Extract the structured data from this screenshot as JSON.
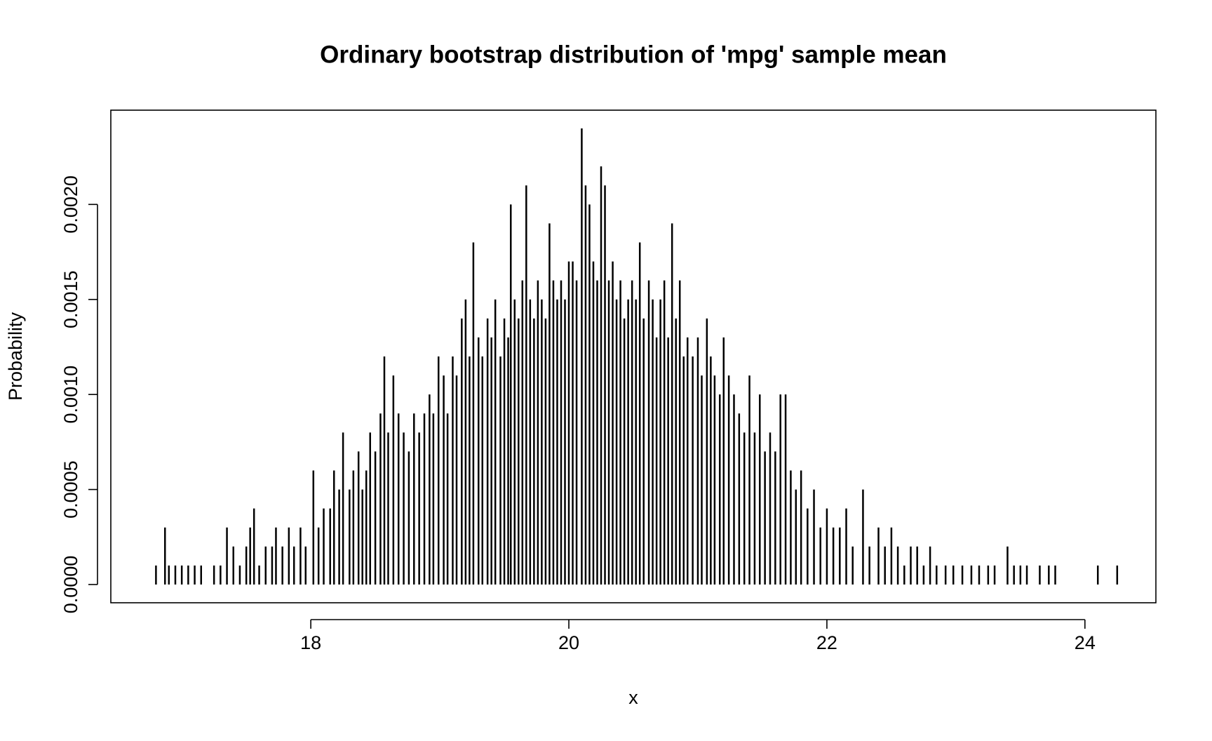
{
  "chart_data": {
    "type": "spike",
    "title": "Ordinary bootstrap distribution of 'mpg' sample mean",
    "x_label": "x",
    "y_label": "Probability",
    "color": "#000000",
    "xlim": [
      16.45,
      24.55
    ],
    "xticks": [
      18,
      20,
      22,
      24
    ],
    "ylim": [
      -9.6e-05,
      0.002496
    ],
    "yticks": [
      {
        "value": 0,
        "label": "0.0000"
      },
      {
        "value": 0.0005,
        "label": "0.0005"
      },
      {
        "value": 0.001,
        "label": "0.0010"
      },
      {
        "value": 0.0015,
        "label": "0.0015"
      },
      {
        "value": 0.002,
        "label": "0.0020"
      }
    ],
    "x": [
      16.8,
      16.87,
      16.9,
      16.95,
      17.0,
      17.05,
      17.1,
      17.15,
      17.25,
      17.3,
      17.35,
      17.4,
      17.45,
      17.5,
      17.53,
      17.56,
      17.6,
      17.65,
      17.7,
      17.73,
      17.78,
      17.83,
      17.87,
      17.92,
      17.96,
      18.02,
      18.06,
      18.1,
      18.15,
      18.18,
      18.22,
      18.25,
      18.3,
      18.33,
      18.37,
      18.4,
      18.43,
      18.46,
      18.5,
      18.54,
      18.57,
      18.6,
      18.64,
      18.68,
      18.72,
      18.76,
      18.8,
      18.84,
      18.88,
      18.92,
      18.95,
      18.99,
      19.03,
      19.06,
      19.1,
      19.13,
      19.17,
      19.2,
      19.23,
      19.26,
      19.3,
      19.33,
      19.37,
      19.4,
      19.43,
      19.47,
      19.5,
      19.53,
      19.55,
      19.58,
      19.61,
      19.64,
      19.67,
      19.7,
      19.73,
      19.76,
      19.79,
      19.82,
      19.85,
      19.88,
      19.91,
      19.94,
      19.97,
      20.0,
      20.03,
      20.06,
      20.1,
      20.13,
      20.16,
      20.19,
      20.22,
      20.25,
      20.28,
      20.31,
      20.34,
      20.37,
      20.4,
      20.43,
      20.46,
      20.49,
      20.52,
      20.55,
      20.58,
      20.62,
      20.65,
      20.68,
      20.71,
      20.74,
      20.77,
      20.8,
      20.83,
      20.86,
      20.89,
      20.92,
      20.96,
      21.0,
      21.03,
      21.07,
      21.1,
      21.13,
      21.17,
      21.2,
      21.24,
      21.28,
      21.32,
      21.36,
      21.4,
      21.44,
      21.48,
      21.52,
      21.56,
      21.6,
      21.64,
      21.68,
      21.72,
      21.76,
      21.8,
      21.85,
      21.9,
      21.95,
      22.0,
      22.05,
      22.1,
      22.15,
      22.2,
      22.28,
      22.33,
      22.4,
      22.45,
      22.5,
      22.55,
      22.6,
      22.65,
      22.7,
      22.75,
      22.8,
      22.85,
      22.92,
      22.98,
      23.05,
      23.12,
      23.18,
      23.25,
      23.3,
      23.4,
      23.45,
      23.5,
      23.55,
      23.65,
      23.72,
      23.77,
      24.1,
      24.25
    ],
    "values": [
      0.0001,
      0.0003,
      0.0001,
      0.0001,
      0.0001,
      0.0001,
      0.0001,
      0.0001,
      0.0001,
      0.0001,
      0.0003,
      0.0002,
      0.0001,
      0.0002,
      0.0003,
      0.0004,
      0.0001,
      0.0002,
      0.0002,
      0.0003,
      0.0002,
      0.0003,
      0.0002,
      0.0003,
      0.0002,
      0.0006,
      0.0003,
      0.0004,
      0.0004,
      0.0006,
      0.0005,
      0.0008,
      0.0005,
      0.0006,
      0.0007,
      0.0005,
      0.0006,
      0.0008,
      0.0007,
      0.0009,
      0.0012,
      0.0008,
      0.0011,
      0.0009,
      0.0008,
      0.0007,
      0.0009,
      0.0008,
      0.0009,
      0.001,
      0.0009,
      0.0012,
      0.0011,
      0.0009,
      0.0012,
      0.0011,
      0.0014,
      0.0015,
      0.0012,
      0.0018,
      0.0013,
      0.0012,
      0.0014,
      0.0013,
      0.0015,
      0.0012,
      0.0014,
      0.0013,
      0.002,
      0.0015,
      0.0014,
      0.0016,
      0.0021,
      0.0015,
      0.0014,
      0.0016,
      0.0015,
      0.0014,
      0.0019,
      0.0016,
      0.0015,
      0.0016,
      0.0015,
      0.0017,
      0.0017,
      0.0016,
      0.0024,
      0.0021,
      0.002,
      0.0017,
      0.0016,
      0.0022,
      0.0021,
      0.0016,
      0.0017,
      0.0015,
      0.0016,
      0.0014,
      0.0015,
      0.0016,
      0.0015,
      0.0018,
      0.0014,
      0.0016,
      0.0015,
      0.0013,
      0.0015,
      0.0016,
      0.0013,
      0.0019,
      0.0014,
      0.0016,
      0.0012,
      0.0013,
      0.0012,
      0.0013,
      0.0011,
      0.0014,
      0.0012,
      0.0011,
      0.001,
      0.0013,
      0.0011,
      0.001,
      0.0009,
      0.0008,
      0.0011,
      0.0008,
      0.001,
      0.0007,
      0.0008,
      0.0007,
      0.001,
      0.001,
      0.0006,
      0.0005,
      0.0006,
      0.0004,
      0.0005,
      0.0003,
      0.0004,
      0.0003,
      0.0003,
      0.0004,
      0.0002,
      0.0005,
      0.0002,
      0.0003,
      0.0002,
      0.0003,
      0.0002,
      0.0001,
      0.0002,
      0.0002,
      0.0001,
      0.0002,
      0.0001,
      0.0001,
      0.0001,
      0.0001,
      0.0001,
      0.0001,
      0.0001,
      0.0001,
      0.0002,
      0.0001,
      0.0001,
      0.0001,
      0.0001,
      0.0001,
      0.0001,
      0.0001,
      0.0001
    ]
  }
}
